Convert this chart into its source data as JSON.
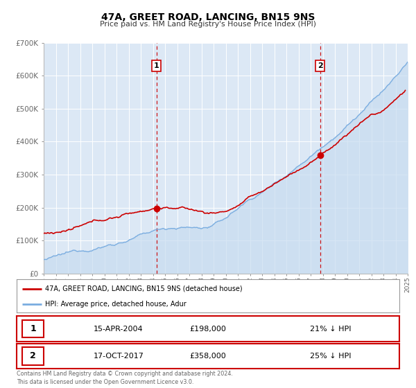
{
  "title": "47A, GREET ROAD, LANCING, BN15 9NS",
  "subtitle": "Price paid vs. HM Land Registry's House Price Index (HPI)",
  "legend_property": "47A, GREET ROAD, LANCING, BN15 9NS (detached house)",
  "legend_hpi": "HPI: Average price, detached house, Adur",
  "marker1_date": "15-APR-2004",
  "marker1_price": 198000,
  "marker1_pct": "21% ↓ HPI",
  "marker1_year": 2004.29,
  "marker2_date": "17-OCT-2017",
  "marker2_price": 358000,
  "marker2_pct": "25% ↓ HPI",
  "marker2_year": 2017.79,
  "footer1": "Contains HM Land Registry data © Crown copyright and database right 2024.",
  "footer2": "This data is licensed under the Open Government Licence v3.0.",
  "plot_bg_color": "#dce8f5",
  "grid_color": "#ffffff",
  "red_color": "#cc0000",
  "blue_color": "#7aade0",
  "blue_fill": "#c8dcf0",
  "xmin": 1995,
  "xmax": 2025,
  "ymin": 0,
  "ymax": 700000,
  "yticks": [
    0,
    100000,
    200000,
    300000,
    400000,
    500000,
    600000,
    700000
  ],
  "ytick_labels": [
    "£0",
    "£100K",
    "£200K",
    "£300K",
    "£400K",
    "£500K",
    "£600K",
    "£700K"
  ]
}
